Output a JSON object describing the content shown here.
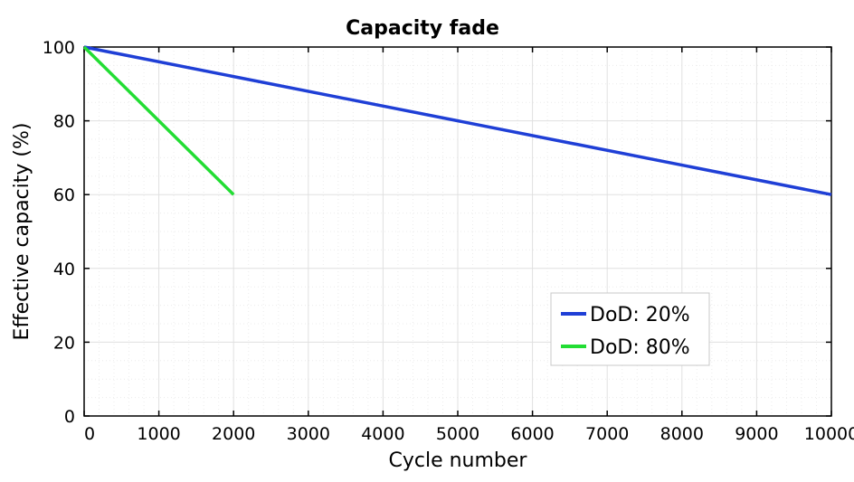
{
  "chart_data": {
    "type": "line",
    "title": "Capacity fade",
    "xlabel": "Cycle number",
    "ylabel": "Effective capacity (%)",
    "xlim": [
      0,
      10000
    ],
    "ylim": [
      0,
      100
    ],
    "x_ticks": [
      0,
      1000,
      2000,
      3000,
      4000,
      5000,
      6000,
      7000,
      8000,
      9000,
      10000
    ],
    "x_tick_labels": [
      "0",
      "1000",
      "2000",
      "3000",
      "4000",
      "5000",
      "6000",
      "7000",
      "8000",
      "9000",
      "10000"
    ],
    "y_ticks": [
      0,
      20,
      40,
      60,
      80,
      100
    ],
    "y_tick_labels": [
      "0",
      "20",
      "40",
      "60",
      "80",
      "100"
    ],
    "grid": true,
    "legend_position": "bottom-right",
    "series": [
      {
        "name": "DoD: 20%",
        "color": "#1f3fd6",
        "x": [
          0,
          10000
        ],
        "y": [
          100,
          60
        ]
      },
      {
        "name": "DoD: 80%",
        "color": "#22dd33",
        "x": [
          0,
          2000
        ],
        "y": [
          100,
          60
        ]
      }
    ]
  }
}
